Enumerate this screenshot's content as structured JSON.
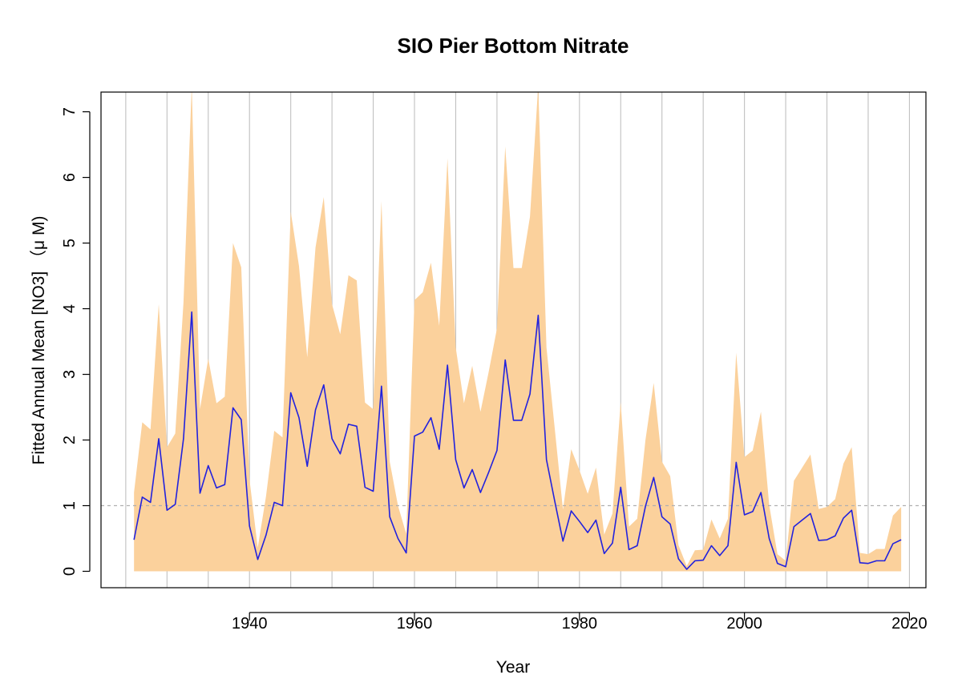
{
  "chart_data": {
    "type": "area",
    "title": "SIO Pier Bottom Nitrate",
    "xlabel": "Year",
    "ylabel": "Fitted Annual Mean [NO3] （μ M)",
    "xlim": [
      1922,
      2022
    ],
    "ylim": [
      -0.25,
      7.3
    ],
    "x_ticks": [
      1940,
      1960,
      1980,
      2000,
      2020
    ],
    "y_ticks": [
      0,
      1,
      2,
      3,
      4,
      5,
      6,
      7
    ],
    "vertical_grid_years": [
      1925,
      1930,
      1935,
      1940,
      1945,
      1950,
      1955,
      1960,
      1965,
      1970,
      1975,
      1980,
      1985,
      1990,
      1995,
      2000,
      2005,
      2010,
      2015,
      2020
    ],
    "reference_line": 1,
    "grid": true,
    "legend": "none",
    "colors": {
      "band": "#fbd19c",
      "line": "#2222dd",
      "grid": "#c0c0c0",
      "reference": "#b0b0b0"
    },
    "x": [
      1926,
      1927,
      1928,
      1929,
      1930,
      1931,
      1932,
      1933,
      1934,
      1935,
      1936,
      1937,
      1938,
      1939,
      1940,
      1941,
      1942,
      1943,
      1944,
      1945,
      1946,
      1947,
      1948,
      1949,
      1950,
      1951,
      1952,
      1953,
      1954,
      1955,
      1956,
      1957,
      1958,
      1959,
      1960,
      1961,
      1962,
      1963,
      1964,
      1965,
      1966,
      1967,
      1968,
      1969,
      1970,
      1971,
      1972,
      1973,
      1974,
      1975,
      1976,
      1977,
      1978,
      1979,
      1980,
      1981,
      1982,
      1983,
      1984,
      1985,
      1986,
      1987,
      1988,
      1989,
      1990,
      1991,
      1992,
      1993,
      1994,
      1995,
      1996,
      1997,
      1998,
      1999,
      2000,
      2001,
      2002,
      2003,
      2004,
      2005,
      2006,
      2007,
      2008,
      2009,
      2010,
      2011,
      2012,
      2013,
      2014,
      2015,
      2016,
      2017,
      2018,
      2019
    ],
    "series": [
      {
        "name": "mean",
        "values": [
          0.48,
          1.13,
          1.05,
          2.02,
          0.93,
          1.02,
          2.02,
          3.95,
          1.19,
          1.61,
          1.27,
          1.32,
          2.49,
          2.31,
          0.69,
          0.18,
          0.55,
          1.05,
          1.0,
          2.72,
          2.34,
          1.6,
          2.46,
          2.84,
          2.02,
          1.79,
          2.24,
          2.21,
          1.28,
          1.22,
          2.82,
          0.83,
          0.5,
          0.28,
          2.06,
          2.12,
          2.34,
          1.86,
          3.14,
          1.7,
          1.27,
          1.55,
          1.2,
          1.51,
          1.84,
          3.22,
          2.3,
          2.3,
          2.7,
          3.9,
          1.7,
          1.07,
          0.46,
          0.92,
          0.76,
          0.59,
          0.78,
          0.27,
          0.43,
          1.28,
          0.33,
          0.39,
          0.99,
          1.43,
          0.83,
          0.72,
          0.19,
          0.03,
          0.16,
          0.17,
          0.39,
          0.24,
          0.39,
          1.66,
          0.86,
          0.91,
          1.2,
          0.5,
          0.12,
          0.07,
          0.68,
          0.78,
          0.88,
          0.47,
          0.48,
          0.54,
          0.81,
          0.93,
          0.13,
          0.12,
          0.16,
          0.16,
          0.42,
          0.48
        ]
      },
      {
        "name": "upper",
        "values": [
          1.2,
          2.27,
          2.16,
          4.07,
          1.89,
          2.1,
          4.1,
          7.4,
          2.47,
          3.24,
          2.56,
          2.66,
          5.0,
          4.63,
          1.4,
          0.36,
          1.14,
          2.14,
          2.04,
          5.48,
          4.65,
          3.26,
          4.93,
          5.7,
          4.07,
          3.61,
          4.51,
          4.43,
          2.57,
          2.47,
          5.64,
          1.67,
          1.0,
          0.57,
          4.13,
          4.25,
          4.7,
          3.74,
          6.29,
          3.41,
          2.56,
          3.13,
          2.43,
          3.04,
          3.7,
          6.47,
          4.62,
          4.62,
          5.4,
          7.4,
          3.41,
          2.18,
          0.94,
          1.86,
          1.54,
          1.18,
          1.58,
          0.56,
          0.88,
          2.58,
          0.68,
          0.8,
          2.0,
          2.87,
          1.67,
          1.45,
          0.4,
          0.08,
          0.32,
          0.33,
          0.79,
          0.5,
          0.8,
          3.33,
          1.74,
          1.84,
          2.43,
          1.01,
          0.26,
          0.16,
          1.38,
          1.58,
          1.78,
          0.95,
          0.98,
          1.1,
          1.64,
          1.89,
          0.28,
          0.26,
          0.34,
          0.34,
          0.85,
          0.98
        ]
      },
      {
        "name": "lower",
        "values": [
          0,
          0,
          0,
          0,
          0,
          0,
          0,
          0,
          0,
          0,
          0,
          0,
          0,
          0,
          0,
          0,
          0,
          0,
          0,
          0,
          0,
          0,
          0,
          0,
          0,
          0,
          0,
          0,
          0,
          0,
          0,
          0,
          0,
          0,
          0,
          0,
          0,
          0,
          0,
          0,
          0,
          0,
          0,
          0,
          0,
          0,
          0,
          0,
          0,
          0,
          0,
          0,
          0,
          0,
          0,
          0,
          0,
          0,
          0,
          0,
          0,
          0,
          0,
          0,
          0,
          0,
          0,
          0,
          0,
          0,
          0,
          0,
          0,
          0,
          0,
          0,
          0,
          0,
          0,
          0,
          0,
          0,
          0,
          0,
          0,
          0,
          0,
          0,
          0,
          0,
          0,
          0,
          0,
          0
        ]
      }
    ]
  }
}
